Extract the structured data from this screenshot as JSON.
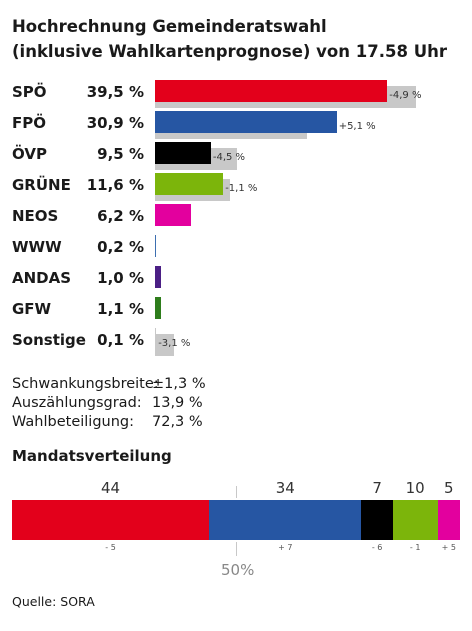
{
  "title_line1": "Hochrechnung Gemeinderatswahl",
  "title_line2": "(inklusive Wahlkartenprognose) von 17.58 Uhr",
  "chart_data": [
    {
      "type": "bar",
      "orientation": "horizontal",
      "categories": [
        "SPÖ",
        "FPÖ",
        "ÖVP",
        "GRÜNE",
        "NEOS",
        "WWW",
        "ANDAS",
        "GFW",
        "Sonstige"
      ],
      "values": [
        39.5,
        30.9,
        9.5,
        11.6,
        6.2,
        0.2,
        1.0,
        1.1,
        0.1
      ],
      "value_labels": [
        "39,5 %",
        "30,9 %",
        "9,5 %",
        "11,6 %",
        "6,2 %",
        "0,2 %",
        "1,0 %",
        "1,1 %",
        "0,1 %"
      ],
      "previous_values": [
        44.4,
        25.8,
        14.0,
        12.7,
        null,
        null,
        null,
        null,
        3.2
      ],
      "diff_labels": [
        "-4,9  %",
        "+5,1  %",
        "-4,5  %",
        "-1,1  %",
        "",
        "",
        "",
        "",
        "-3,1  %"
      ],
      "colors": [
        "#e3001b",
        "#2656a3",
        "#000000",
        "#7cb50b",
        "#e3009e",
        "#3d6fb0",
        "#4b1f85",
        "#2e7d1c",
        "#c8c8c8"
      ],
      "previous_color": "#c8c8c8"
    },
    {
      "type": "bar",
      "orientation": "stacked-horizontal",
      "title": "Mandatsverteilung",
      "categories": [
        "SPÖ",
        "FPÖ",
        "ÖVP",
        "GRÜNE",
        "NEOS"
      ],
      "values": [
        44,
        34,
        7,
        10,
        5
      ],
      "seat_labels": [
        "44",
        "34",
        "7",
        "10",
        "5"
      ],
      "diff_labels": [
        "- 5",
        "+ 7",
        "- 6",
        "- 1",
        "+ 5"
      ],
      "colors": [
        "#e3001b",
        "#2656a3",
        "#000000",
        "#7cb50b",
        "#e3009e"
      ],
      "total": 100,
      "majority_label": "50%"
    }
  ],
  "stats": [
    {
      "label": "Schwankungsbreite:",
      "value": "±1,3 %"
    },
    {
      "label": "Auszählungsgrad:",
      "value": "13,9 %"
    },
    {
      "label": "Wahlbeteiligung:",
      "value": "72,3 %"
    }
  ],
  "source": "Quelle: SORA"
}
